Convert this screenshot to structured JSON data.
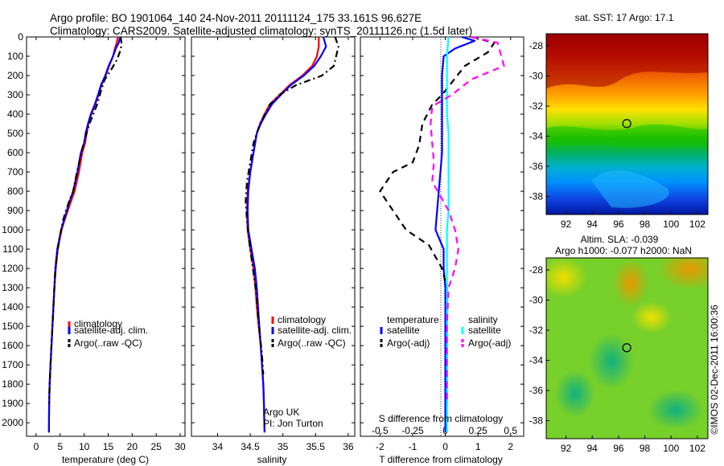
{
  "header": {
    "line1": "Argo profile: BO 1901064_140 24-Nov-2011 20111124_175 33.161S 96.627E",
    "line2": "Climatology: CARS2009. Satellite-adjusted climatology: synTS_20111126.nc (1.5d later)"
  },
  "side_text": "©IMOS 02-Dec-2011 16:00:36",
  "chart_data": [
    {
      "id": "temperature",
      "type": "line",
      "xlabel": "temperature (deg C)",
      "ylabel": "",
      "xlim": [
        -2,
        31
      ],
      "ylim": [
        2070,
        0
      ],
      "xticks": [
        0,
        5,
        10,
        15,
        20,
        25,
        30
      ],
      "xtick_labels": [
        "0",
        "5",
        "10",
        "15",
        "20",
        "25",
        "30"
      ],
      "yticks": [
        0,
        100,
        200,
        300,
        400,
        500,
        600,
        700,
        800,
        900,
        1000,
        1100,
        1200,
        1300,
        1400,
        1500,
        1600,
        1700,
        1800,
        1900,
        2000
      ],
      "legend": [
        "climatology",
        "satellite-adj. clim.",
        "Argo(..raw -QC)"
      ],
      "series": [
        {
          "name": "climatology",
          "color": "#ff0000",
          "dash": "none",
          "x": [
            17.0,
            16.8,
            16.4,
            16.0,
            15.2,
            14.5,
            13.6,
            13.0,
            12.3,
            11.5,
            10.9,
            10.5,
            10.2,
            9.6,
            8.9,
            8.0,
            7.3,
            6.6,
            5.9,
            5.3,
            4.9,
            4.5,
            4.1,
            3.8,
            3.6,
            3.4,
            3.2,
            3.0,
            2.8,
            2.7,
            2.65
          ],
          "y": [
            0,
            30,
            60,
            100,
            150,
            200,
            250,
            300,
            350,
            400,
            450,
            500,
            550,
            600,
            700,
            800,
            850,
            900,
            950,
            1000,
            1050,
            1100,
            1200,
            1300,
            1400,
            1500,
            1600,
            1700,
            1800,
            1900,
            2050
          ]
        },
        {
          "name": "satellite-adj. clim.",
          "color": "#0000ff",
          "dash": "none",
          "x": [
            17.5,
            17.2,
            16.6,
            16.0,
            15.1,
            14.4,
            13.5,
            12.9,
            12.2,
            11.4,
            10.8,
            10.3,
            10.0,
            9.3,
            8.6,
            7.7,
            7.0,
            6.4,
            5.8,
            5.2,
            4.8,
            4.4,
            4.0,
            3.8,
            3.6,
            3.4,
            3.2,
            3.0,
            2.8,
            2.7,
            2.65
          ],
          "y": [
            0,
            30,
            60,
            100,
            150,
            200,
            250,
            300,
            350,
            400,
            450,
            500,
            550,
            600,
            700,
            800,
            850,
            900,
            950,
            1000,
            1050,
            1100,
            1200,
            1300,
            1400,
            1500,
            1600,
            1700,
            1800,
            1900,
            2050
          ]
        },
        {
          "name": "Argo(..raw -QC)",
          "color": "#000000",
          "dash": "8,4,2,4",
          "x": [
            17.6,
            17.8,
            17.4,
            16.8,
            15.6,
            14.3,
            13.5,
            12.7,
            11.9,
            11.1,
            10.5,
            9.9,
            9.4,
            8.5,
            7.7,
            6.9,
            6.2,
            5.6,
            5.2,
            4.8,
            4.5,
            4.0,
            3.8,
            3.6,
            3.4,
            3.2,
            3.0,
            2.8,
            2.7
          ],
          "y": [
            0,
            40,
            80,
            120,
            170,
            220,
            280,
            350,
            400,
            450,
            500,
            550,
            600,
            700,
            800,
            850,
            900,
            950,
            1000,
            1050,
            1100,
            1200,
            1300,
            1400,
            1500,
            1600,
            1700,
            1800,
            1900
          ]
        }
      ]
    },
    {
      "id": "salinity",
      "type": "line",
      "xlabel": "salinity",
      "ylabel": "",
      "xlim": [
        33.6,
        36.1
      ],
      "ylim": [
        2070,
        0
      ],
      "xticks": [
        34,
        34.5,
        35,
        35.5,
        36
      ],
      "xtick_labels": [
        "34",
        "34.5",
        "35",
        "35.5",
        "36"
      ],
      "legend": [
        "climatology",
        "satellite-adj. clim.",
        "Argo(..raw -QC)"
      ],
      "annotation": [
        "Argo UK",
        "PI: Jon Turton"
      ],
      "series": [
        {
          "name": "climatology",
          "color": "#ff0000",
          "dash": "none",
          "x": [
            35.55,
            35.55,
            35.52,
            35.45,
            35.3,
            35.1,
            34.95,
            34.8,
            34.72,
            34.65,
            34.6,
            34.55,
            34.5,
            34.46,
            34.45,
            34.46,
            34.5,
            34.55,
            34.58,
            34.6,
            34.63,
            34.66,
            34.68,
            34.7,
            34.71,
            34.72
          ],
          "y": [
            0,
            50,
            100,
            150,
            200,
            250,
            300,
            350,
            400,
            450,
            500,
            600,
            700,
            800,
            900,
            1000,
            1100,
            1200,
            1300,
            1400,
            1500,
            1600,
            1700,
            1800,
            1900,
            2050
          ]
        },
        {
          "name": "satellite-adj. clim.",
          "color": "#0000ff",
          "dash": "none",
          "x": [
            35.62,
            35.66,
            35.58,
            35.48,
            35.32,
            35.12,
            34.97,
            34.83,
            34.74,
            34.66,
            34.6,
            34.55,
            34.5,
            34.47,
            34.46,
            34.47,
            34.52,
            34.57,
            34.6,
            34.62,
            34.64,
            34.66,
            34.68,
            34.7,
            34.71,
            34.72
          ],
          "y": [
            0,
            50,
            100,
            150,
            200,
            250,
            300,
            350,
            400,
            450,
            500,
            600,
            700,
            800,
            900,
            1000,
            1100,
            1200,
            1300,
            1400,
            1500,
            1600,
            1700,
            1800,
            1900,
            2050
          ]
        },
        {
          "name": "Argo(..raw -QC)",
          "color": "#000000",
          "dash": "8,4,2,4",
          "x": [
            35.8,
            35.85,
            35.78,
            35.6,
            35.2,
            34.95,
            34.8,
            34.65,
            34.55,
            34.5,
            34.45,
            34.43,
            34.45,
            34.48,
            34.52,
            34.56,
            34.6,
            34.62,
            34.65,
            34.68,
            34.7
          ],
          "y": [
            0,
            50,
            150,
            200,
            250,
            300,
            350,
            450,
            550,
            650,
            750,
            850,
            950,
            1050,
            1150,
            1250,
            1350,
            1450,
            1550,
            1650,
            1750
          ]
        }
      ]
    },
    {
      "id": "difference",
      "type": "line",
      "xlabel": "T difference from climatology",
      "xlabel_top": "S difference from climatology",
      "xlim": [
        -2.6,
        2.4
      ],
      "ylim": [
        2070,
        0
      ],
      "xticks": [
        -2,
        -1,
        0,
        1,
        2
      ],
      "xtick_labels": [
        "-2",
        "-1",
        "0",
        "1",
        "2"
      ],
      "s_xticks": [
        -2,
        -1,
        0,
        1,
        2
      ],
      "s_xtick_labels": [
        "-0.5",
        "-0.25",
        "0",
        "0.25",
        "0.5"
      ],
      "legend_groups": [
        {
          "title": "temperature",
          "items": [
            "satellite",
            "Argo(-adj)"
          ]
        },
        {
          "title": "salinity",
          "items": [
            "satellite",
            "Argo(-adj)"
          ]
        }
      ],
      "series": [
        {
          "name": "satellite",
          "group": "temperature",
          "color": "#0000ff",
          "dash": "none",
          "x": [
            0.5,
            0.9,
            0.3,
            -0.05,
            -0.1,
            -0.1,
            -0.1,
            -0.1,
            -0.1,
            -0.15,
            -0.2,
            -0.25,
            -0.3,
            -0.05,
            -0.05,
            0,
            0,
            0,
            0,
            0,
            0
          ],
          "y": [
            0,
            20,
            60,
            100,
            200,
            300,
            400,
            500,
            600,
            700,
            800,
            900,
            1000,
            1100,
            1200,
            1300,
            1400,
            1500,
            1700,
            1900,
            2050
          ]
        },
        {
          "name": "Argo(-adj)",
          "group": "temperature",
          "color": "#000000",
          "dash": "8,6",
          "x": [
            0.8,
            1.5,
            1.3,
            0.6,
            -0.1,
            -0.4,
            -0.7,
            -0.8,
            -1.0,
            -1.6,
            -2.0,
            -1.6,
            -1.2,
            -0.5,
            -0.1,
            0.05,
            0.05,
            0.05,
            0.05
          ],
          "y": [
            0,
            30,
            80,
            150,
            300,
            350,
            450,
            560,
            650,
            700,
            800,
            900,
            1000,
            1080,
            1200,
            1300,
            1500,
            1700,
            1900
          ]
        },
        {
          "name": "satellite",
          "group": "salinity",
          "color": "#00ffff",
          "dash": "none",
          "x": [
            0.1,
            0.05,
            0.05,
            0.05,
            0.05,
            0.1,
            0.1,
            0.1,
            0.1,
            0.1,
            0.05,
            0.05,
            0.05,
            0.05,
            0.05,
            0.05,
            0.05
          ],
          "y": [
            0,
            100,
            200,
            300,
            400,
            500,
            600,
            700,
            800,
            900,
            1000,
            1100,
            1200,
            1400,
            1600,
            1800,
            2050
          ]
        },
        {
          "name": "Argo(-adj)",
          "group": "salinity",
          "color": "#ff00ff",
          "dash": "8,6",
          "x": [
            0.8,
            1.6,
            1.8,
            0.8,
            0.2,
            -0.4,
            -0.45,
            -0.4,
            -0.35,
            -0.4,
            0.1,
            0.3,
            0.4,
            0.3,
            0.1,
            0.05,
            0.05,
            0.05
          ],
          "y": [
            0,
            30,
            150,
            220,
            300,
            360,
            450,
            550,
            650,
            750,
            900,
            1000,
            1100,
            1200,
            1300,
            1500,
            1700,
            1900
          ]
        }
      ]
    },
    {
      "id": "sst_map",
      "type": "heatmap",
      "title": "sat. SST: 17 Argo: 17.1",
      "xlim": [
        90.5,
        102.8
      ],
      "ylim": [
        -39.2,
        -27.2
      ],
      "xticks": [
        92,
        94,
        96,
        98,
        100,
        102
      ],
      "yticks": [
        -28,
        -30,
        -32,
        -34,
        -36,
        -38
      ],
      "marker": {
        "lon": 96.627,
        "lat": -33.161
      }
    },
    {
      "id": "sla_map",
      "type": "heatmap",
      "title_lines": [
        "Altim. SLA: -0.039",
        "Argo h1000: -0.077 h2000: NaN"
      ],
      "xlim": [
        90.5,
        102.8
      ],
      "ylim": [
        -39.2,
        -27.2
      ],
      "xticks": [
        92,
        94,
        96,
        98,
        100,
        102
      ],
      "yticks": [
        -28,
        -30,
        -32,
        -34,
        -36,
        -38
      ],
      "marker": {
        "lon": 96.627,
        "lat": -33.161
      }
    }
  ]
}
